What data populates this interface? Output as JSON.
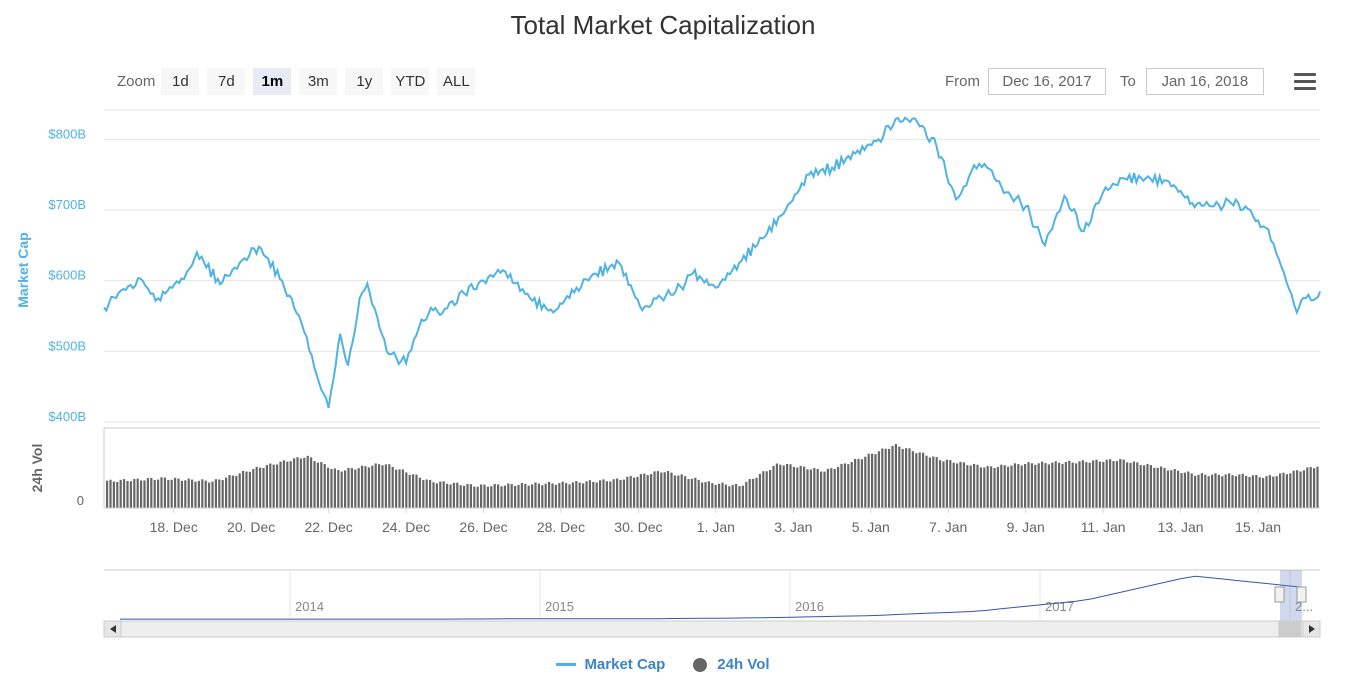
{
  "title": "Total Market Capitalization",
  "zoom": {
    "label": "Zoom",
    "buttons": [
      "1d",
      "7d",
      "1m",
      "3m",
      "1y",
      "YTD",
      "ALL"
    ],
    "selected": "1m"
  },
  "range": {
    "from_label": "From",
    "from_value": "Dec 16, 2017",
    "to_label": "To",
    "to_value": "Jan 16, 2018"
  },
  "legend": {
    "market_cap": "Market Cap",
    "volume": "24h Vol"
  },
  "colors": {
    "line": "#4fb3e3",
    "bars": "#666666",
    "axis_label": "#4fb3e3",
    "navigator_line": "#3355aa"
  },
  "chart_data": {
    "type": "line",
    "title": "Total Market Capitalization",
    "xlabel": "",
    "ylabel": "Market Cap",
    "ylim": [
      400,
      850
    ],
    "y_unit": "$B",
    "yticks": [
      "$400B",
      "$500B",
      "$600B",
      "$700B",
      "$800B"
    ],
    "ytick_values": [
      400,
      500,
      600,
      700,
      800
    ],
    "xticks": [
      "18. Dec",
      "20. Dec",
      "22. Dec",
      "24. Dec",
      "26. Dec",
      "28. Dec",
      "30. Dec",
      "1. Jan",
      "3. Jan",
      "5. Jan",
      "7. Jan",
      "9. Jan",
      "11. Jan",
      "13. Jan",
      "15. Jan"
    ],
    "xtick_days": [
      1.8,
      3.8,
      5.8,
      7.8,
      9.8,
      11.8,
      13.8,
      15.8,
      17.8,
      19.8,
      21.8,
      23.8,
      25.8,
      27.8,
      29.8
    ],
    "xlim_days": [
      0,
      31.4
    ],
    "series": [
      {
        "name": "Market Cap",
        "x": [
          0,
          0.5,
          1.0,
          1.4,
          2.0,
          2.4,
          3.0,
          3.5,
          4.0,
          4.6,
          5.1,
          5.5,
          5.8,
          6.1,
          6.3,
          6.6,
          6.8,
          7.3,
          7.8,
          8.2,
          8.5,
          8.8,
          9.3,
          9.8,
          10.3,
          11.0,
          11.6,
          12.2,
          12.7,
          13.3,
          13.9,
          14.2,
          14.7,
          15.2,
          15.8,
          16.4,
          17.0,
          17.6,
          18.2,
          18.8,
          19.4,
          20.0,
          20.5,
          21.0,
          21.5,
          22.0,
          22.4,
          22.8,
          23.3,
          23.8,
          24.3,
          24.8,
          25.3,
          25.8,
          26.3,
          26.9,
          27.5,
          28.1,
          28.6,
          29.1,
          29.6,
          30.0,
          30.4,
          30.8,
          31.1,
          31.3,
          31.4
        ],
        "values": [
          562,
          588,
          600,
          575,
          603,
          640,
          595,
          625,
          648,
          600,
          540,
          465,
          420,
          525,
          480,
          575,
          596,
          500,
          483,
          545,
          558,
          560,
          582,
          600,
          615,
          575,
          555,
          590,
          610,
          625,
          558,
          575,
          580,
          610,
          590,
          625,
          660,
          700,
          750,
          760,
          780,
          800,
          830,
          825,
          790,
          715,
          755,
          760,
          725,
          705,
          650,
          720,
          670,
          725,
          745,
          745,
          740,
          710,
          705,
          710,
          700,
          675,
          620,
          555,
          580,
          575,
          585
        ]
      },
      {
        "name": "24h Vol",
        "x": [
          0,
          1.5,
          2.8,
          4.0,
          5.2,
          6.0,
          7.2,
          8.4,
          9.6,
          10.8,
          12.0,
          13.2,
          14.4,
          15.6,
          16.4,
          17.4,
          18.6,
          19.4,
          20.4,
          21.6,
          22.8,
          23.8,
          25.0,
          26.2,
          27.2,
          28.2,
          29.2,
          30.0,
          30.8,
          31.4
        ],
        "values": [
          0.36,
          0.4,
          0.36,
          0.55,
          0.7,
          0.5,
          0.6,
          0.36,
          0.3,
          0.32,
          0.34,
          0.38,
          0.5,
          0.34,
          0.3,
          0.6,
          0.5,
          0.65,
          0.85,
          0.65,
          0.55,
          0.6,
          0.62,
          0.65,
          0.55,
          0.45,
          0.45,
          0.42,
          0.5,
          0.58
        ]
      }
    ],
    "volume_ytick": "0",
    "volume_ylabel": "24h Vol",
    "navigator": {
      "years": [
        "2014",
        "2015",
        "2016",
        "2017",
        "2..."
      ],
      "values": [
        0.02,
        0.02,
        0.02,
        0.02,
        0.03,
        0.03,
        0.05,
        0.1,
        0.2,
        0.45,
        1.0,
        0.75
      ]
    }
  }
}
